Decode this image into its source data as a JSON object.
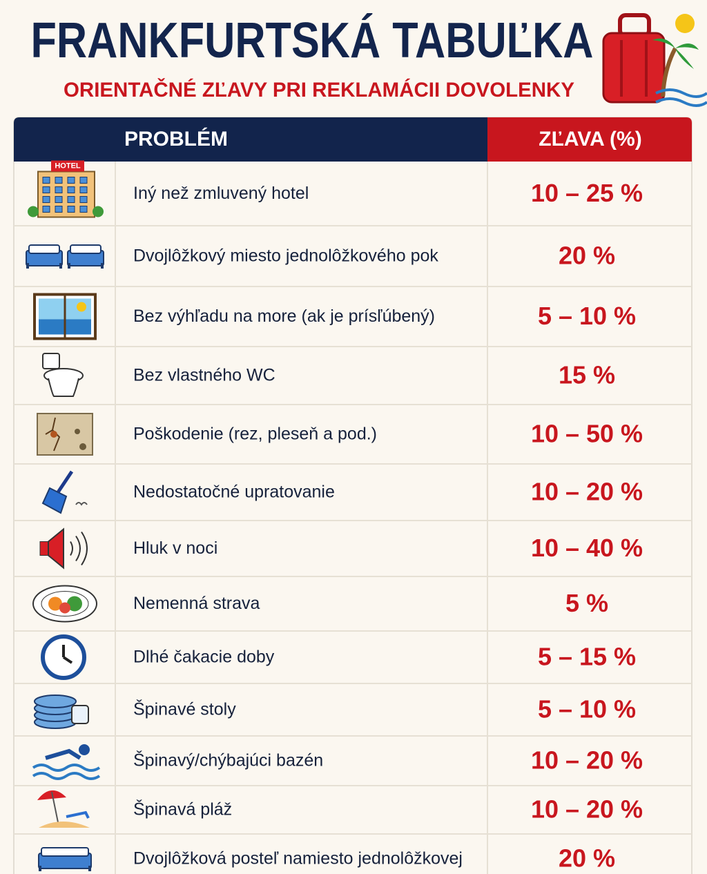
{
  "header": {
    "title": "FRANKFURTSKÁ TABUĽKA",
    "subtitle": "ORIENTAČNÉ ZĽAVY PRI REKLAMÁCII DOVOLENKY"
  },
  "table": {
    "columns": [
      "PROBLÉM",
      "ZĽAVA (%)"
    ],
    "icon_sign": "HOTEL",
    "rows": [
      {
        "problem": "Iný než zmluvený hotel",
        "discount": "10 – 25 %"
      },
      {
        "problem": "Dvojlôžkový miesto jednolôžkového pok",
        "discount": "20 %"
      },
      {
        "problem": "Bez výhľadu na more (ak je prísľúbený)",
        "discount": "5 – 10 %"
      },
      {
        "problem": "Bez vlastného WC",
        "discount": "15 %"
      },
      {
        "problem": "Poškodenie (rez, pleseň a pod.)",
        "discount": "10 – 50 %"
      },
      {
        "problem": "Nedostatočné upratovanie",
        "discount": "10 – 20 %"
      },
      {
        "problem": "Hluk v noci",
        "discount": "10 – 40 %"
      },
      {
        "problem": "Nemenná strava",
        "discount": "5 %"
      },
      {
        "problem": "Dlhé čakacie doby",
        "discount": "5 – 15 %"
      },
      {
        "problem": "Špinavé stoly",
        "discount": "5 – 10 %"
      },
      {
        "problem": "Špinavý/chýbajúci bazén",
        "discount": "10 – 20 %"
      },
      {
        "problem": "Špinavá pláž",
        "discount": "10 – 20 %"
      },
      {
        "problem": "Dvojlôžková posteľ namiesto jednolôžkovej",
        "discount": "20 %"
      }
    ]
  }
}
